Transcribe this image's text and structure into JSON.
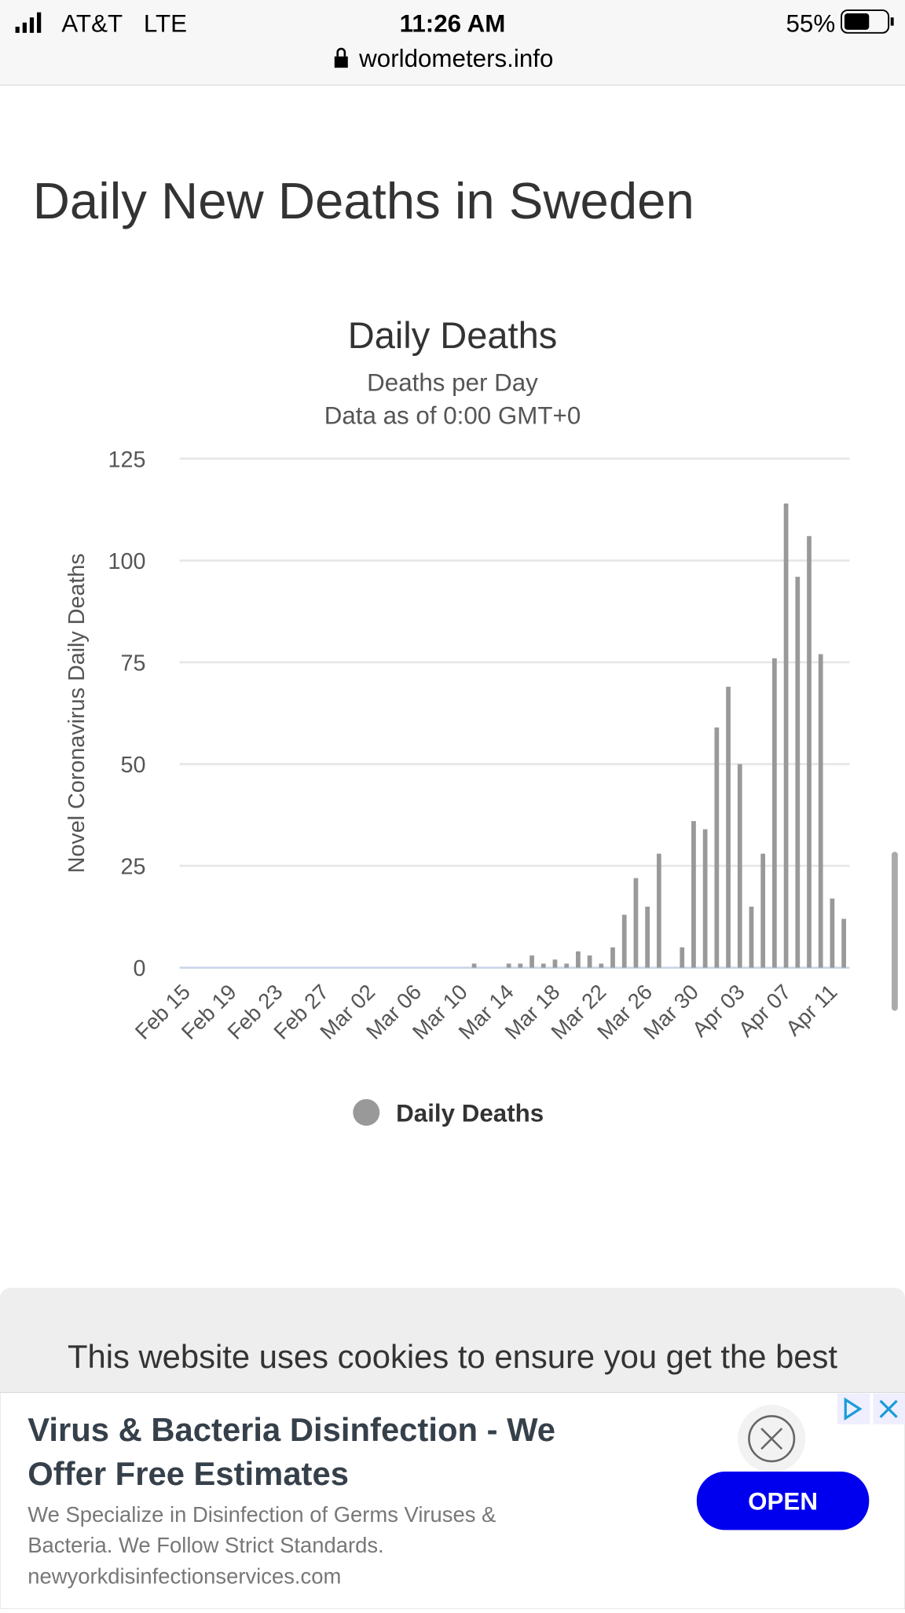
{
  "status": {
    "carrier": "AT&T",
    "network": "LTE",
    "time": "11:26 AM",
    "battery": "55%"
  },
  "url": "worldometers.info",
  "heading": "Daily New Deaths in Sweden",
  "chart_data": {
    "type": "bar",
    "title": "Daily Deaths",
    "subtitle": [
      "Deaths per Day",
      "Data as of 0:00 GMT+0"
    ],
    "y_label": "Novel Coronavirus Daily Deaths",
    "categories": [
      "Feb 15",
      null,
      null,
      null,
      "Feb 19",
      null,
      null,
      null,
      "Feb 23",
      null,
      null,
      null,
      "Feb 27",
      null,
      null,
      null,
      "Mar 02",
      null,
      null,
      null,
      "Mar 06",
      null,
      null,
      null,
      "Mar 10",
      null,
      null,
      null,
      "Mar 14",
      null,
      null,
      null,
      "Mar 18",
      null,
      null,
      null,
      "Mar 22",
      null,
      null,
      null,
      "Mar 26",
      null,
      null,
      null,
      "Mar 30",
      null,
      null,
      null,
      "Apr 03",
      null,
      null,
      null,
      "Apr 07",
      null,
      null,
      null,
      "Apr 11",
      null
    ],
    "series": [
      {
        "name": "Daily Deaths",
        "color": "#999999",
        "values": [
          0,
          0,
          0,
          0,
          0,
          0,
          0,
          0,
          0,
          0,
          0,
          0,
          0,
          0,
          0,
          0,
          0,
          0,
          0,
          0,
          0,
          0,
          0,
          0,
          0,
          1,
          0,
          0,
          1,
          1,
          3,
          1,
          2,
          1,
          4,
          3,
          1,
          5,
          13,
          22,
          15,
          28,
          0,
          5,
          36,
          34,
          59,
          69,
          50,
          15,
          28,
          76,
          114,
          96,
          106,
          77,
          17,
          12
        ]
      }
    ],
    "ylim": [
      0,
      125
    ],
    "yticks": [
      0,
      25,
      50,
      75,
      100,
      125
    ],
    "grid": true,
    "legend": "bottom"
  },
  "cookie_text": "This website uses cookies to ensure you get the best",
  "ad": {
    "title": [
      "Virus & Bacteria Disinfection - We",
      "Offer Free Estimates"
    ],
    "body": [
      "We Specialize in Disinfection of Germs Viruses &",
      "Bacteria. We Follow Strict Standards."
    ],
    "domain": "newyorkdisinfectionservices.com",
    "button": "OPEN"
  }
}
